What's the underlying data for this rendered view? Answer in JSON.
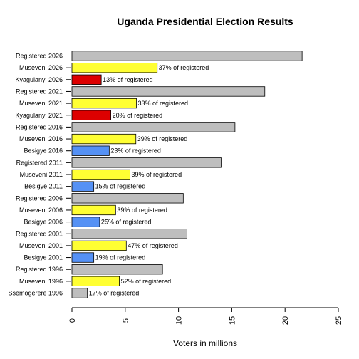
{
  "chart_data": {
    "type": "bar",
    "orientation": "horizontal",
    "title": "Uganda Presidential Election Results",
    "xlabel": "Voters in millions",
    "ylabel": "",
    "xlim": [
      0,
      25
    ],
    "xticks": [
      "0",
      "5",
      "10",
      "15",
      "20",
      "25"
    ],
    "categories": [
      "Registered 2026",
      "Museveni 2026",
      "Kyagulanyi 2026",
      "Registered 2021",
      "Museveni 2021",
      "Kyagulanyi 2021",
      "Registered 2016",
      "Museveni 2016",
      "Besigye 2016",
      "Registered 2011",
      "Museveni 2011",
      "Besigye 2011",
      "Registered 2006",
      "Museveni 2006",
      "Besigye 2006",
      "Registered 2001",
      "Museveni 2001",
      "Besigye 2001",
      "Registered 1996",
      "Museveni 1996",
      "Ssemogerere 1996"
    ],
    "values": [
      21.6,
      8.0,
      2.75,
      18.1,
      6.05,
      3.65,
      15.3,
      6.0,
      3.5,
      14.0,
      5.45,
      2.05,
      10.45,
      4.1,
      2.6,
      10.8,
      5.1,
      2.05,
      8.5,
      4.45,
      1.45
    ],
    "labels": [
      "",
      "37% of registered",
      "13% of registered",
      "",
      "33% of registered",
      "20% of registered",
      "",
      "39% of registered",
      "23% of registered",
      "",
      "39% of registered",
      "15% of registered",
      "",
      "39% of registered",
      "25% of registered",
      "",
      "47% of registered",
      "19% of registered",
      "",
      "52% of registered",
      "17% of registered"
    ],
    "colors": [
      "#bebebe",
      "#ffff33",
      "#dd0000",
      "#bebebe",
      "#ffff33",
      "#dd0000",
      "#bebebe",
      "#ffff33",
      "#5591f5",
      "#bebebe",
      "#ffff33",
      "#5591f5",
      "#bebebe",
      "#ffff33",
      "#5591f5",
      "#bebebe",
      "#ffff33",
      "#5591f5",
      "#bebebe",
      "#ffff33",
      "#bebebe"
    ],
    "grid": false,
    "legend": "none"
  }
}
